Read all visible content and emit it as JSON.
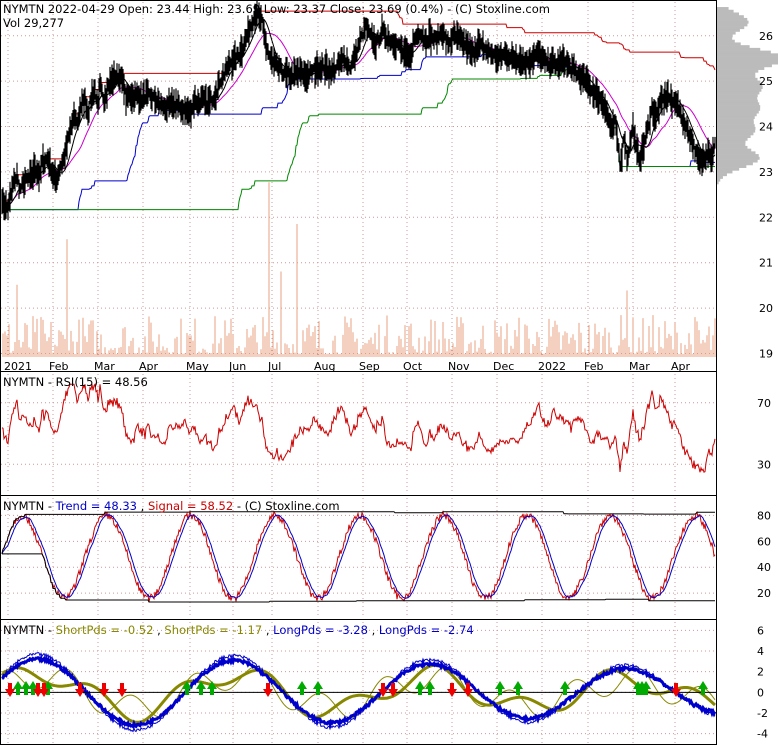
{
  "chart_data": [
    {
      "type": "line",
      "ticker": "NYMTN",
      "header": {
        "date": "2022-04-29",
        "open_label": "Open:",
        "open": "23.44",
        "high_label": "High:",
        "high": "23.69",
        "low_label": "Low:",
        "low": "23.37",
        "close_label": "Close:",
        "close": "23.69",
        "change": "(0.4%)",
        "source": "(C) Stoxline.com",
        "vol_label": "Vol",
        "vol": "29,277"
      },
      "x_labels": [
        "2021",
        "Feb",
        "Mar",
        "Apr",
        "May",
        "Jun",
        "Jul",
        "Aug",
        "Sep",
        "Oct",
        "Nov",
        "Dec",
        "2022",
        "Feb",
        "Mar",
        "Apr"
      ],
      "y_ticks": [
        "26",
        "25",
        "24",
        "23",
        "22",
        "21",
        "20",
        "19"
      ],
      "ylim": [
        18.9,
        26.7
      ],
      "price_keypoints": {
        "x": [
          0,
          3,
          8,
          10,
          14,
          17,
          20,
          25,
          32,
          35,
          40,
          42,
          48,
          52,
          56,
          60,
          64,
          66,
          70,
          74,
          78,
          80,
          85,
          88,
          92,
          95,
          98,
          100,
          104,
          108,
          112,
          115,
          120,
          124,
          126,
          130,
          134,
          138,
          141,
          146,
          150,
          155,
          160,
          165,
          170,
          176,
          180,
          185,
          190,
          195,
          198,
          202,
          207,
          212,
          215,
          220,
          225,
          230,
          236,
          242,
          247,
          252,
          256,
          262,
          266,
          270,
          273,
          278,
          283,
          290,
          295,
          300,
          306,
          312,
          318,
          325,
          332,
          340,
          345,
          350,
          356,
          360,
          366,
          370,
          376,
          382,
          390,
          398,
          404,
          410,
          414,
          420,
          425,
          430,
          436,
          442,
          448,
          454,
          460,
          466,
          472,
          478,
          485,
          492,
          498,
          505,
          512,
          518,
          525,
          532,
          538,
          546,
          552,
          558,
          564,
          570,
          576,
          580,
          586,
          592,
          596,
          600,
          604,
          608,
          612,
          615,
          618,
          620,
          622,
          624,
          627,
          630,
          633,
          636,
          640,
          644,
          648,
          652,
          656,
          660,
          664,
          668,
          672,
          676,
          680,
          684,
          688,
          692,
          696,
          700,
          704,
          708,
          712,
          715
        ],
        "y": [
          22.7,
          22.3,
          22.2,
          22.4,
          22.8,
          22.9,
          22.6,
          22.8,
          22.9,
          23.1,
          22.9,
          23.2,
          23.3,
          23.0,
          22.8,
          23.1,
          23.3,
          23.5,
          23.9,
          24.2,
          24.1,
          24.4,
          24.6,
          24.3,
          24.7,
          24.8,
          24.4,
          24.9,
          24.6,
          24.9,
          25.0,
          25.1,
          25.1,
          24.9,
          24.6,
          24.7,
          24.65,
          24.7,
          24.6,
          24.7,
          24.65,
          24.6,
          24.5,
          24.4,
          24.45,
          24.5,
          24.4,
          24.35,
          24.3,
          24.6,
          24.5,
          24.6,
          24.5,
          24.6,
          24.7,
          25.0,
          25.2,
          25.4,
          25.5,
          25.7,
          26.0,
          26.3,
          26.5,
          26.3,
          25.8,
          25.5,
          25.4,
          25.3,
          25.2,
          25.1,
          25.15,
          25.2,
          25.1,
          25.2,
          25.3,
          25.3,
          25.2,
          25.4,
          25.5,
          25.3,
          25.6,
          25.9,
          26.2,
          26.0,
          25.8,
          26.1,
          25.9,
          25.8,
          25.6,
          25.5,
          25.9,
          26.1,
          25.9,
          26.0,
          25.9,
          26.1,
          25.8,
          26.0,
          25.9,
          25.8,
          25.6,
          25.8,
          25.7,
          25.6,
          25.5,
          25.6,
          25.5,
          25.5,
          25.4,
          25.5,
          25.6,
          25.4,
          25.4,
          25.35,
          25.45,
          25.3,
          25.2,
          25.1,
          25.0,
          24.8,
          24.7,
          24.6,
          24.5,
          24.2,
          23.9,
          24.1,
          23.6,
          23.2,
          23.4,
          23.8,
          23.3,
          23.6,
          24.0,
          23.5,
          23.3,
          23.6,
          24.0,
          24.4,
          24.2,
          24.5,
          24.6,
          24.7,
          24.5,
          24.6,
          24.3,
          24.1,
          23.9,
          23.7,
          23.4,
          23.2,
          23.3,
          23.5,
          23.3,
          23.69
        ]
      }
    },
    {
      "type": "line",
      "title": "NYMTN - RSI(15) = 48.56",
      "y_ticks": [
        "70",
        "30"
      ],
      "ylim": [
        10,
        90
      ]
    },
    {
      "type": "line",
      "title": "NYMTN -",
      "series": [
        {
          "name": "Trend = 48.33",
          "color": "#0000cc"
        },
        {
          "name": "Signal = 58.52",
          "color": "#cc0000"
        }
      ],
      "source": "- (C) Stoxline.com",
      "y_ticks": [
        "80",
        "60",
        "40",
        "20"
      ],
      "ylim": [
        0,
        95
      ]
    },
    {
      "type": "line",
      "title": "NYMTN -",
      "series": [
        {
          "name": "ShortPds = -0.52",
          "color": "#888800"
        },
        {
          "name": "ShortPds = -1.17",
          "color": "#888800"
        },
        {
          "name": "LongPds = -3.28",
          "color": "#0000cc"
        },
        {
          "name": "LongPds = -2.74",
          "color": "#0000cc"
        }
      ],
      "y_ticks": [
        "6",
        "4",
        "2",
        "0",
        "-2",
        "-4"
      ],
      "ylim": [
        -5,
        7
      ],
      "up_arrow_x": [
        18,
        26,
        33,
        48,
        187,
        201,
        212,
        302,
        318,
        420,
        430,
        500,
        518,
        565,
        638,
        642,
        646,
        703
      ],
      "down_arrow_x": [
        10,
        38,
        44,
        80,
        104,
        122,
        268,
        383,
        393,
        452,
        468,
        676
      ]
    }
  ],
  "colors": {
    "price": "#000000",
    "ma_red": "#cc0000",
    "ma_magenta": "#cc00cc",
    "ma_blue": "#0000cc",
    "ma_green": "#008800",
    "volume": "#e8a080",
    "volume_profile": "#bbbbbb",
    "grid": "#cc9999"
  }
}
